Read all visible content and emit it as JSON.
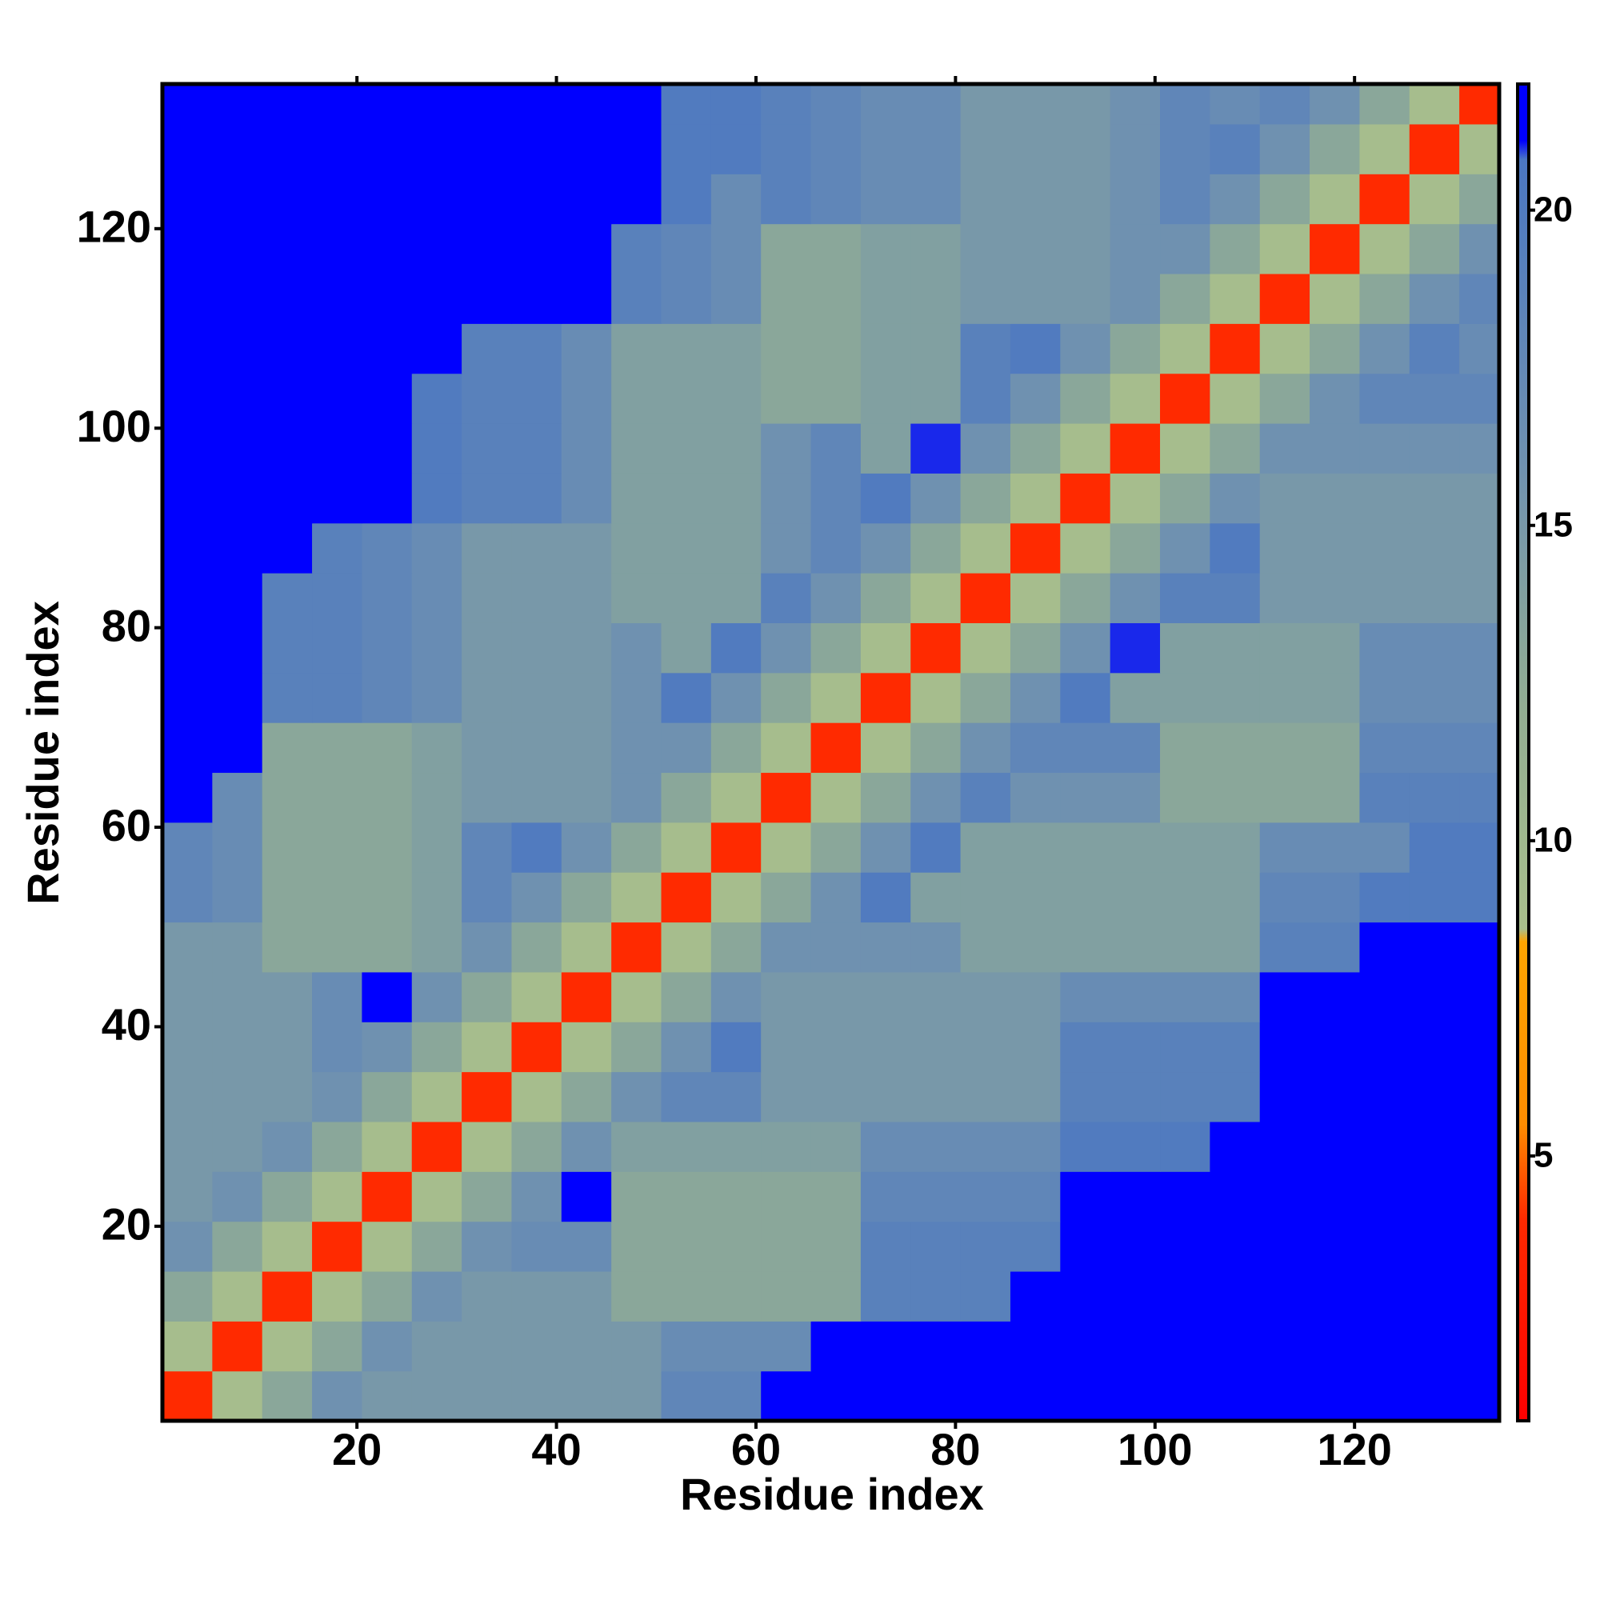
{
  "chart_data": {
    "type": "heatmap",
    "xlabel": "Residue index",
    "ylabel": "Residue index",
    "xbins": [
      0.5,
      5.5,
      10.5,
      15.5,
      20.5,
      25.5,
      30.5,
      35.5,
      40.5,
      45.5,
      50.5,
      55.5,
      60.5,
      65.5,
      70.5,
      75.5,
      80.5,
      85.5,
      90.5,
      95.5,
      100.5,
      105.5,
      110.5,
      115.5,
      120.5,
      125.5,
      130.5,
      134.5
    ],
    "ybins": [
      0.5,
      5.5,
      10.5,
      15.5,
      20.5,
      25.5,
      30.5,
      35.5,
      40.5,
      45.5,
      50.5,
      55.5,
      60.5,
      65.5,
      70.5,
      75.5,
      80.5,
      85.5,
      90.5,
      95.5,
      100.5,
      105.5,
      110.5,
      115.5,
      120.5,
      125.5,
      130.5,
      134.5
    ],
    "xlim": [
      0.5,
      134.5
    ],
    "ylim": [
      0.5,
      134.5
    ],
    "xticks": [
      20,
      40,
      60,
      80,
      100,
      120
    ],
    "yticks": [
      20,
      40,
      60,
      80,
      100,
      120
    ],
    "zlim": [
      0.8,
      22
    ],
    "zticks": [
      5,
      10,
      15,
      20
    ],
    "colorscale": [
      [
        0.8,
        "#ff0000"
      ],
      [
        4,
        "#ff2a00"
      ],
      [
        5.5,
        "#ff8c00"
      ],
      [
        8.4,
        "#ffa500"
      ],
      [
        8.6,
        "#a9bf8c"
      ],
      [
        12,
        "#93ae92"
      ],
      [
        16,
        "#6f91b0"
      ],
      [
        20.8,
        "#4b77c2"
      ],
      [
        21.1,
        "#0000ff"
      ],
      [
        22,
        "#0000ff"
      ]
    ],
    "z": [
      [
        4,
        9,
        13,
        16,
        15,
        15,
        15,
        15,
        15,
        15,
        18,
        18,
        22,
        22,
        22,
        22,
        22,
        22,
        22,
        22,
        22,
        22,
        22,
        22,
        22,
        22,
        22
      ],
      [
        9,
        4,
        9,
        13,
        16,
        15,
        15,
        15,
        15,
        15,
        17,
        17,
        17,
        22,
        22,
        22,
        22,
        22,
        22,
        22,
        22,
        22,
        22,
        22,
        22,
        22,
        22
      ],
      [
        13,
        9,
        4,
        9,
        13,
        16,
        15,
        15,
        15,
        13,
        13,
        13,
        13,
        13,
        19,
        19,
        19,
        22,
        22,
        22,
        22,
        22,
        22,
        22,
        22,
        22,
        22
      ],
      [
        16,
        13,
        9,
        4,
        9,
        13,
        16,
        17,
        17,
        13,
        13,
        13,
        13,
        13,
        19,
        19,
        19,
        19,
        22,
        22,
        22,
        22,
        22,
        22,
        22,
        22,
        22
      ],
      [
        15,
        16,
        13,
        9,
        4,
        9,
        13,
        16,
        22,
        13,
        13,
        13,
        13,
        13,
        18,
        18,
        18,
        18,
        22,
        22,
        22,
        22,
        22,
        22,
        22,
        22,
        22
      ],
      [
        15,
        15,
        16,
        13,
        9,
        4,
        9,
        13,
        16,
        14,
        14,
        14,
        14,
        14,
        17,
        17,
        17,
        17,
        20,
        20,
        20,
        22,
        22,
        22,
        22,
        22,
        22
      ],
      [
        15,
        15,
        15,
        16,
        13,
        9,
        4,
        9,
        13,
        16,
        18,
        18,
        15,
        15,
        15,
        15,
        15,
        15,
        19,
        19,
        19,
        19,
        22,
        22,
        22,
        22,
        22
      ],
      [
        15,
        15,
        15,
        17,
        16,
        13,
        9,
        4,
        9,
        13,
        16,
        20,
        15,
        15,
        15,
        15,
        15,
        15,
        19,
        19,
        19,
        19,
        22,
        22,
        22,
        22,
        22
      ],
      [
        15,
        15,
        15,
        17,
        22,
        16,
        13,
        9,
        4,
        9,
        13,
        16,
        15,
        15,
        15,
        15,
        15,
        15,
        17,
        17,
        17,
        17,
        22,
        22,
        22,
        22,
        22
      ],
      [
        15,
        15,
        13,
        13,
        13,
        14,
        16,
        13,
        9,
        4,
        9,
        13,
        16,
        16,
        16,
        16,
        14,
        14,
        14,
        14,
        14,
        14,
        19,
        19,
        22,
        22,
        22
      ],
      [
        18,
        17,
        13,
        13,
        13,
        14,
        18,
        16,
        13,
        9,
        4,
        9,
        13,
        16,
        20,
        14,
        14,
        14,
        14,
        14,
        14,
        14,
        18,
        18,
        20,
        20,
        20
      ],
      [
        18,
        17,
        13,
        13,
        13,
        14,
        18,
        20,
        16,
        13,
        9,
        4,
        9,
        13,
        16,
        20,
        14,
        14,
        14,
        14,
        14,
        14,
        17,
        17,
        17,
        20,
        20
      ],
      [
        22,
        17,
        13,
        13,
        13,
        14,
        15,
        15,
        15,
        16,
        13,
        9,
        4,
        9,
        13,
        16,
        19,
        16,
        16,
        16,
        13,
        13,
        13,
        13,
        19,
        19,
        19
      ],
      [
        22,
        22,
        13,
        13,
        13,
        14,
        15,
        15,
        15,
        16,
        16,
        13,
        9,
        4,
        9,
        13,
        16,
        18,
        18,
        18,
        13,
        13,
        13,
        13,
        18,
        18,
        18
      ],
      [
        22,
        22,
        19,
        19,
        18,
        17,
        15,
        15,
        15,
        16,
        20,
        16,
        13,
        9,
        4,
        9,
        13,
        16,
        20,
        14,
        14,
        14,
        14,
        14,
        17,
        17,
        17
      ],
      [
        22,
        22,
        19,
        19,
        18,
        17,
        15,
        15,
        15,
        16,
        14,
        20,
        16,
        13,
        9,
        4,
        9,
        13,
        16,
        21,
        14,
        14,
        14,
        14,
        17,
        17,
        17
      ],
      [
        22,
        22,
        19,
        19,
        18,
        17,
        15,
        15,
        15,
        14,
        14,
        14,
        19,
        16,
        13,
        9,
        4,
        9,
        13,
        16,
        19,
        19,
        15,
        15,
        15,
        15,
        15
      ],
      [
        22,
        22,
        22,
        19,
        18,
        17,
        15,
        15,
        15,
        14,
        14,
        14,
        16,
        18,
        16,
        13,
        9,
        4,
        9,
        13,
        16,
        20,
        15,
        15,
        15,
        15,
        15
      ],
      [
        22,
        22,
        22,
        22,
        22,
        20,
        19,
        19,
        17,
        14,
        14,
        14,
        16,
        18,
        20,
        16,
        13,
        9,
        4,
        9,
        13,
        16,
        15,
        15,
        15,
        15,
        15
      ],
      [
        22,
        22,
        22,
        22,
        22,
        20,
        19,
        19,
        17,
        14,
        14,
        14,
        16,
        18,
        14,
        21,
        16,
        13,
        9,
        4,
        9,
        13,
        16,
        16,
        16,
        16,
        16
      ],
      [
        22,
        22,
        22,
        22,
        22,
        20,
        19,
        19,
        17,
        14,
        14,
        14,
        13,
        13,
        14,
        14,
        19,
        16,
        13,
        9,
        4,
        9,
        13,
        16,
        18,
        18,
        18
      ],
      [
        22,
        22,
        22,
        22,
        22,
        22,
        19,
        19,
        17,
        14,
        14,
        14,
        13,
        13,
        14,
        14,
        19,
        20,
        16,
        13,
        9,
        4,
        9,
        13,
        16,
        19,
        17
      ],
      [
        22,
        22,
        22,
        22,
        22,
        22,
        22,
        22,
        22,
        19,
        18,
        17,
        13,
        13,
        14,
        14,
        15,
        15,
        15,
        16,
        13,
        9,
        4,
        9,
        13,
        16,
        18
      ],
      [
        22,
        22,
        22,
        22,
        22,
        22,
        22,
        22,
        22,
        19,
        18,
        17,
        13,
        13,
        14,
        14,
        15,
        15,
        15,
        16,
        16,
        13,
        9,
        4,
        9,
        13,
        16
      ],
      [
        22,
        22,
        22,
        22,
        22,
        22,
        22,
        22,
        22,
        22,
        20,
        17,
        19,
        18,
        17,
        17,
        15,
        15,
        15,
        16,
        18,
        16,
        13,
        9,
        4,
        9,
        13
      ],
      [
        22,
        22,
        22,
        22,
        22,
        22,
        22,
        22,
        22,
        22,
        20,
        20,
        19,
        18,
        17,
        17,
        15,
        15,
        15,
        16,
        18,
        19,
        16,
        13,
        9,
        4,
        9
      ],
      [
        22,
        22,
        22,
        22,
        22,
        22,
        22,
        22,
        22,
        22,
        20,
        20,
        19,
        18,
        17,
        17,
        15,
        15,
        15,
        16,
        18,
        17,
        18,
        16,
        13,
        9,
        4
      ]
    ]
  }
}
